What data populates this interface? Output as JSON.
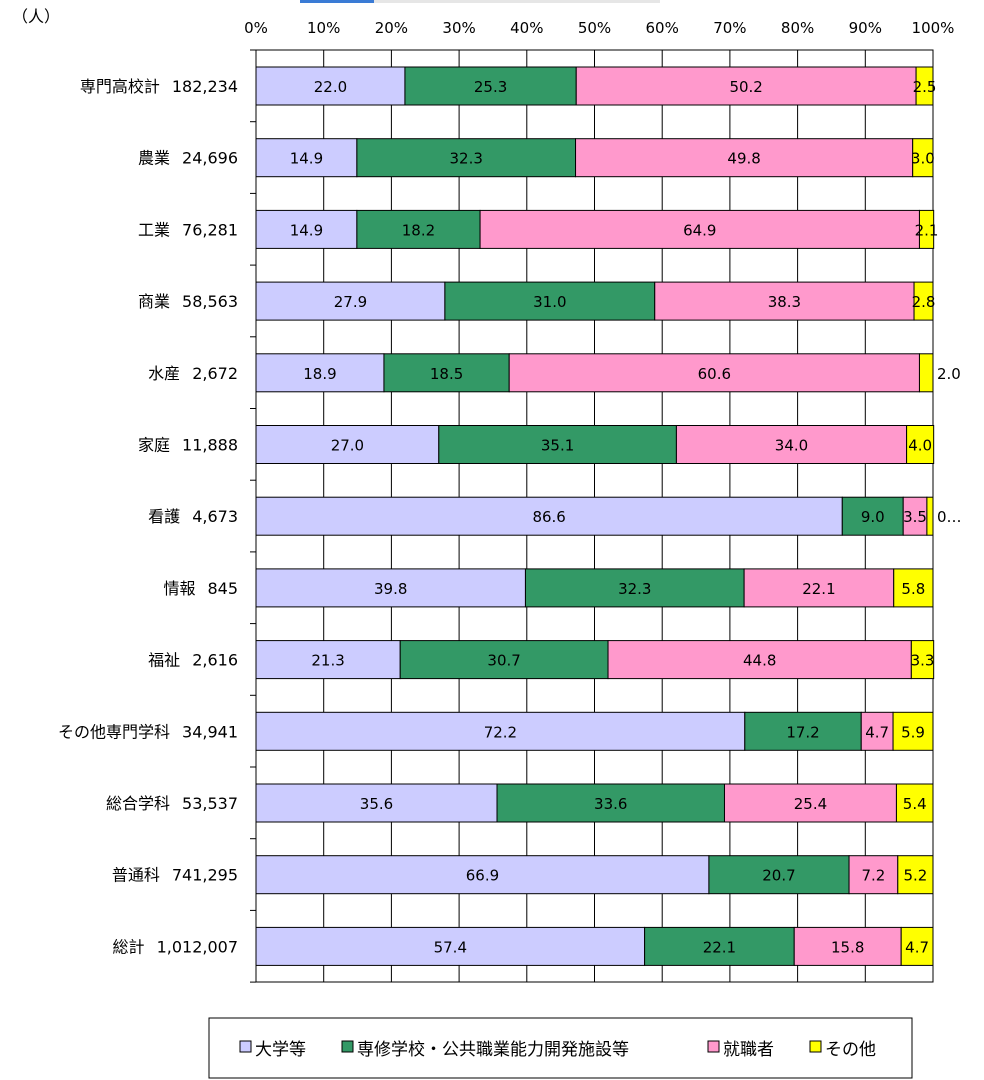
{
  "chart_data": {
    "type": "bar",
    "orientation": "horizontal",
    "stacked": true,
    "percent": true,
    "unit_label": "（人）",
    "xticks": [
      "0%",
      "10%",
      "20%",
      "30%",
      "40%",
      "50%",
      "60%",
      "70%",
      "80%",
      "90%",
      "100%"
    ],
    "xlim": [
      0,
      100
    ],
    "grid": true,
    "legend_position": "bottom",
    "categories": [
      {
        "name": "専門高校計",
        "count": "182,234"
      },
      {
        "name": "農業",
        "count": "24,696"
      },
      {
        "name": "工業",
        "count": "76,281"
      },
      {
        "name": "商業",
        "count": "58,563"
      },
      {
        "name": "水産",
        "count": "2,672"
      },
      {
        "name": "家庭",
        "count": "11,888"
      },
      {
        "name": "看護",
        "count": "4,673"
      },
      {
        "name": "情報",
        "count": "845"
      },
      {
        "name": "福祉",
        "count": "2,616"
      },
      {
        "name": "その他専門学科",
        "count": "34,941"
      },
      {
        "name": "総合学科",
        "count": "53,537"
      },
      {
        "name": "普通科",
        "count": "741,295"
      },
      {
        "name": "総計",
        "count": "1,012,007"
      }
    ],
    "series": [
      {
        "name": "大学等",
        "color": "#ccccff",
        "values": [
          22.0,
          14.9,
          14.9,
          27.9,
          18.9,
          27.0,
          86.6,
          39.8,
          21.3,
          72.2,
          35.6,
          66.9,
          57.4
        ],
        "labels": [
          "22.0",
          "14.9",
          "14.9",
          "27.9",
          "18.9",
          "27.0",
          "86.6",
          "39.8",
          "21.3",
          "72.2",
          "35.6",
          "66.9",
          "57.4"
        ]
      },
      {
        "name": "専修学校・公共職業能力開発施設等",
        "color": "#339966",
        "values": [
          25.3,
          32.3,
          18.2,
          31.0,
          18.5,
          35.1,
          9.0,
          32.3,
          30.7,
          17.2,
          33.6,
          20.7,
          22.1
        ],
        "labels": [
          "25.3",
          "32.3",
          "18.2",
          "31.0",
          "18.5",
          "35.1",
          "9.0",
          "32.3",
          "30.7",
          "17.2",
          "33.6",
          "20.7",
          "22.1"
        ]
      },
      {
        "name": "就職者",
        "color": "#ff99cc",
        "values": [
          50.2,
          49.8,
          64.9,
          38.3,
          60.6,
          34.0,
          3.5,
          22.1,
          44.8,
          4.7,
          25.4,
          7.2,
          15.8
        ],
        "labels": [
          "50.2",
          "49.8",
          "64.9",
          "38.3",
          "60.6",
          "34.0",
          "3.5",
          "22.1",
          "44.8",
          "4.7",
          "25.4",
          "7.2",
          "15.8"
        ]
      },
      {
        "name": "その他",
        "color": "#ffff00",
        "values": [
          2.5,
          3.0,
          2.1,
          2.8,
          2.0,
          4.0,
          0.9,
          5.8,
          3.3,
          5.9,
          5.4,
          5.2,
          4.7
        ],
        "labels": [
          "2.5",
          "3.0",
          "2.1",
          "2.8",
          "2.0",
          "4.0",
          "0…",
          "5.8",
          "3.3",
          "5.9",
          "5.4",
          "5.2",
          "4.7"
        ]
      }
    ]
  }
}
